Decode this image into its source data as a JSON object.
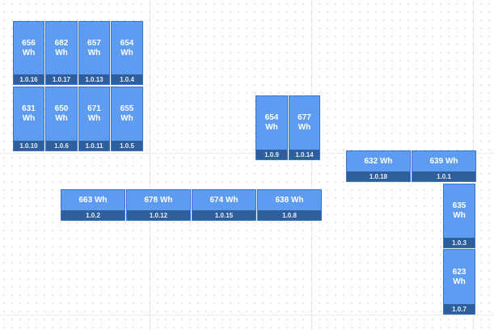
{
  "panels": [
    {
      "id": "1.0.16",
      "energy": "656\nWh"
    },
    {
      "id": "1.0.17",
      "energy": "682\nWh"
    },
    {
      "id": "1.0.13",
      "energy": "657\nWh"
    },
    {
      "id": "1.0.4",
      "energy": "654\nWh"
    },
    {
      "id": "1.0.10",
      "energy": "631\nWh"
    },
    {
      "id": "1.0.6",
      "energy": "650\nWh"
    },
    {
      "id": "1.0.11",
      "energy": "671\nWh"
    },
    {
      "id": "1.0.5",
      "energy": "655\nWh"
    },
    {
      "id": "1.0.9",
      "energy": "654\nWh"
    },
    {
      "id": "1.0.14",
      "energy": "677\nWh"
    },
    {
      "id": "1.0.18",
      "energy": "632 Wh"
    },
    {
      "id": "1.0.1",
      "energy": "639 Wh"
    },
    {
      "id": "1.0.2",
      "energy": "663 Wh"
    },
    {
      "id": "1.0.12",
      "energy": "678 Wh"
    },
    {
      "id": "1.0.15",
      "energy": "674 Wh"
    },
    {
      "id": "1.0.8",
      "energy": "638 Wh"
    },
    {
      "id": "1.0.3",
      "energy": "635\nWh"
    },
    {
      "id": "1.0.7",
      "energy": "623\nWh"
    }
  ]
}
